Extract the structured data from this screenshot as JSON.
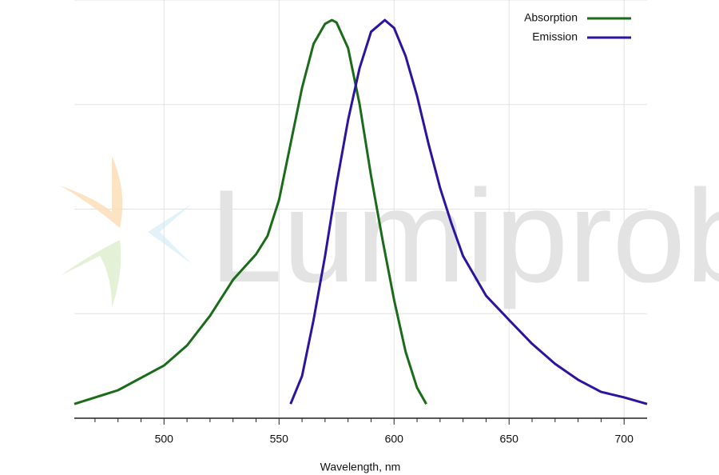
{
  "chart_data": {
    "type": "line",
    "watermark": "Lumiprobe",
    "xlabel": "Wavelength, nm",
    "xlim": [
      461,
      710
    ],
    "xticks": [
      500,
      550,
      600,
      650,
      700
    ],
    "xminor_ticks": [
      470,
      480,
      490,
      510,
      520,
      530,
      540,
      560,
      570,
      580,
      590,
      610,
      620,
      630,
      640,
      660,
      670,
      680,
      690
    ],
    "ylim": [
      0,
      1
    ],
    "yticks": [
      0.25,
      0.5,
      0.75,
      1
    ],
    "grid": true,
    "legend": "upper right",
    "series": [
      {
        "name": "Absorption",
        "color": "#1a6b1a",
        "x": [
          461,
          480,
          500,
          510,
          520,
          530,
          540,
          545,
          550,
          555,
          560,
          565,
          570,
          573,
          575,
          580,
          585,
          590,
          595,
          600,
          605,
          610,
          614
        ],
        "values": [
          0.034,
          0.067,
          0.126,
          0.174,
          0.245,
          0.331,
          0.392,
          0.436,
          0.522,
          0.656,
          0.79,
          0.895,
          0.943,
          0.952,
          0.946,
          0.885,
          0.751,
          0.579,
          0.426,
          0.283,
          0.159,
          0.073,
          0.034
        ]
      },
      {
        "name": "Emission",
        "color": "#2a14a0",
        "x": [
          555,
          560,
          565,
          570,
          575,
          580,
          585,
          590,
          596,
          600,
          605,
          610,
          615,
          620,
          625,
          630,
          640,
          650,
          660,
          670,
          680,
          690,
          700,
          710
        ],
        "values": [
          0.034,
          0.101,
          0.235,
          0.388,
          0.56,
          0.713,
          0.837,
          0.924,
          0.952,
          0.933,
          0.866,
          0.771,
          0.656,
          0.551,
          0.465,
          0.388,
          0.293,
          0.235,
          0.178,
          0.13,
          0.092,
          0.063,
          0.05,
          0.034
        ]
      }
    ]
  }
}
